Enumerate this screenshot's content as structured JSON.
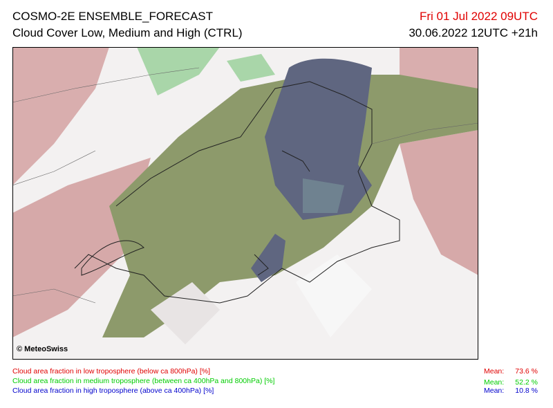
{
  "header": {
    "title": "COSMO-2E ENSEMBLE_FORECAST",
    "subtitle": "Cloud Cover Low, Medium and High (CTRL)",
    "valid_time": "Fri 01 Jul 2022 09UTC",
    "run_time": "30.06.2022 12UTC +21h"
  },
  "map": {
    "copyright": "© MeteoSwiss"
  },
  "legend": [
    {
      "label": "Cloud area fraction in low troposphere (below ca 800hPa) [%]",
      "mean_label": "Mean:",
      "mean": "73.6 %"
    },
    {
      "label": "Cloud area fraction in medium troposphere (between ca 400hPa and 800hPa) [%]",
      "mean_label": "Mean:",
      "mean": "52.2 %"
    },
    {
      "label": "Cloud area fraction in high troposphere (above ca 400hPa) [%]",
      "mean_label": "Mean:",
      "mean": "10.8 %"
    }
  ]
}
